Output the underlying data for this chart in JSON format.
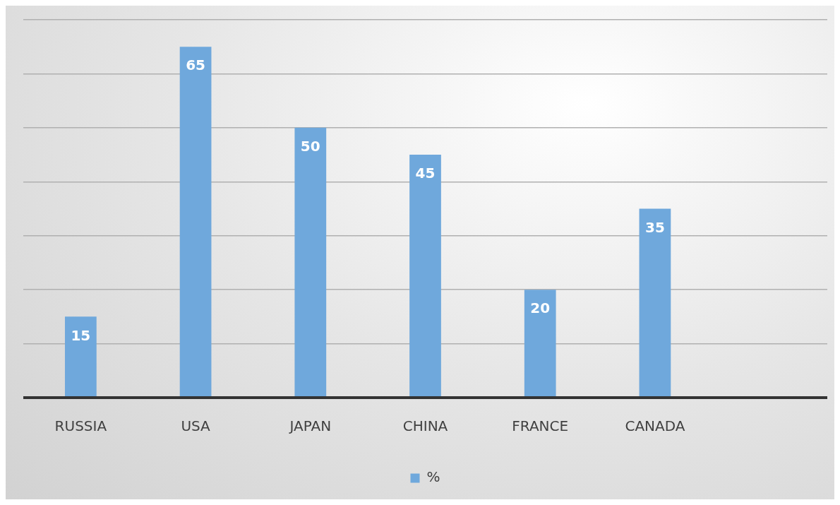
{
  "chart_data": {
    "type": "bar",
    "categories": [
      "RUSSIA",
      "USA",
      "JAPAN",
      "CHINA",
      "FRANCE",
      "CANADA",
      null
    ],
    "series": [
      {
        "name": "%",
        "color": "#6fa8dc",
        "values": [
          15,
          65,
          50,
          45,
          20,
          35,
          null
        ]
      }
    ],
    "ylim": [
      0,
      70
    ],
    "yticks": [
      {
        "value": 0,
        "label": null
      },
      {
        "value": 10,
        "label": null
      },
      {
        "value": 20,
        "label": null
      },
      {
        "value": 30,
        "label": null
      },
      {
        "value": 40,
        "label": null
      },
      {
        "value": 50,
        "label": null
      },
      {
        "value": 60,
        "label": null
      },
      {
        "value": 70,
        "label": null
      }
    ],
    "tick_labels": "x",
    "grid": "y",
    "legend": "bottom",
    "data_labels": true
  }
}
